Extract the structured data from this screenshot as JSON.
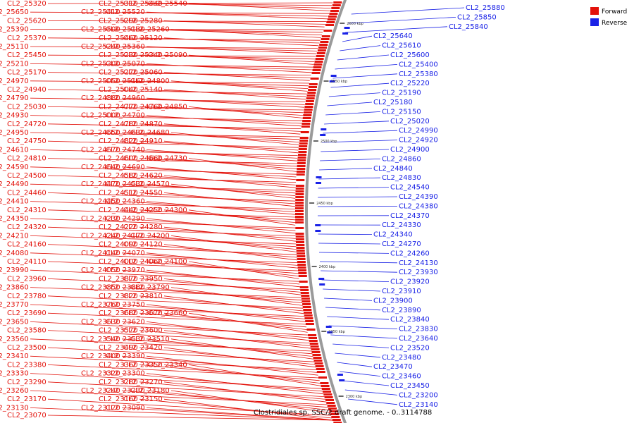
{
  "caption": "Clostridiales sp. SSC/2 draft genome. - 0..3114788",
  "legend": {
    "forward_label": "Forward",
    "reverse_label": "Reverse",
    "forward_color": "#e3120b",
    "reverse_color": "#1a22e6"
  },
  "ticks": [
    "2600 kbp",
    "2550 kbp",
    "2500 kbp",
    "2450 kbp",
    "2400 kbp",
    "2350 kbp",
    "2300 kbp"
  ],
  "forward_labels": [
    "CL2_25320",
    "CL2_25310",
    "CL2_25440",
    "CL2_25540",
    "CL2_25650",
    "CL2_25410",
    "CL2_25520",
    "CL2_25620",
    "CL2_25290",
    "CL2_25280",
    "CL2_25390",
    "CL2_25500",
    "CL2_25130",
    "CL2_25260",
    "CL2_25370",
    "CL2_25460",
    "CL2_25120",
    "CL2_25110",
    "CL2_25240",
    "CL2_25360",
    "CL2_25450",
    "CL2_25230",
    "CL2_25340",
    "CL2_25090",
    "CL2_25210",
    "CL2_25300",
    "CL2_25070",
    "CL2_25170",
    "CL2_25270",
    "CL2_25060",
    "CL2_24970",
    "CL2_25050",
    "CL2_25160",
    "CL2_24800",
    "CL2_24940",
    "CL2_25040",
    "CL2_25140",
    "CL2_24790",
    "CL2_24880",
    "CL2_24960",
    "CL2_25030",
    "CL2_24770",
    "CL2_24760",
    "CL2_24850",
    "CL2_24930",
    "CL2_25000",
    "CL2_24700",
    "CL2_24720",
    "CL2_24780",
    "CL2_24870",
    "CL2_24950",
    "CL2_24650",
    "CL2_24630",
    "CL2_24680",
    "CL2_24750",
    "CL2_24820",
    "CL2_24910",
    "CL2_24610",
    "CL2_24670",
    "CL2_24740",
    "CL2_24810",
    "CL2_24600",
    "CL2_24660",
    "CL2_24730",
    "CL2_24590",
    "CL2_24640",
    "CL2_24690",
    "CL2_24500",
    "CL2_24580",
    "CL2_24620",
    "CL2_24490",
    "CL2_24470",
    "CL2_24530",
    "CL2_24570",
    "CL2_24460",
    "CL2_24510",
    "CL2_24550",
    "CL2_24410",
    "CL2_24450",
    "CL2_24360",
    "CL2_24310",
    "CL2_24440",
    "CL2_24250",
    "CL2_24300",
    "CL2_24350",
    "CL2_24230",
    "CL2_24290",
    "CL2_24320",
    "CL2_24220",
    "CL2_24280",
    "CL2_24210",
    "CL2_24240",
    "CL2_24170",
    "CL2_24200",
    "CL2_24160",
    "CL2_24090",
    "CL2_24120",
    "CL2_24080",
    "CL2_24140",
    "CL2_24070",
    "CL2_24110",
    "CL2_24000",
    "CL2_24060",
    "CL2_24100",
    "CL2_23990",
    "CL2_24050",
    "CL2_23970",
    "CL2_23960",
    "CL2_23870",
    "CL2_23950",
    "CL2_23860",
    "CL2_23850",
    "CL2_23880",
    "CL2_23790",
    "CL2_23780",
    "CL2_23820",
    "CL2_23810",
    "CL2_23770",
    "CL2_23760",
    "CL2_23750",
    "CL2_23690",
    "CL2_23680",
    "CL2_23670",
    "CL2_23660",
    "CL2_23650",
    "CL2_23630",
    "CL2_23620",
    "CL2_23580",
    "CL2_23570",
    "CL2_23600",
    "CL2_23560",
    "CL2_23540",
    "CL2_23530",
    "CL2_23510",
    "CL2_23500",
    "CL2_23490",
    "CL2_23420",
    "CL2_23410",
    "CL2_23400",
    "CL2_23390",
    "CL2_23380",
    "CL2_23360",
    "CL2_23350",
    "CL2_23340",
    "CL2_23330",
    "CL2_23320",
    "CL2_23300",
    "CL2_23290",
    "CL2_23280",
    "CL2_23270",
    "CL2_23260",
    "CL2_23240",
    "CL2_23230",
    "CL2_23180",
    "CL2_23170",
    "CL2_23160",
    "CL2_23150",
    "CL2_23130",
    "CL2_23120",
    "CL2_23090",
    "CL2_23070"
  ],
  "reverse_labels": [
    "CL2_25880",
    "CL2_25850",
    "CL2_25840",
    "CL2_25640",
    "CL2_25610",
    "CL2_25600",
    "CL2_25400",
    "CL2_25380",
    "CL2_25220",
    "CL2_25190",
    "CL2_25180",
    "CL2_25150",
    "CL2_25020",
    "CL2_24990",
    "CL2_24920",
    "CL2_24900",
    "CL2_24860",
    "CL2_24840",
    "CL2_24830",
    "CL2_24540",
    "CL2_24390",
    "CL2_24380",
    "CL2_24370",
    "CL2_24330",
    "CL2_24340",
    "CL2_24270",
    "CL2_24260",
    "CL2_24130",
    "CL2_23930",
    "CL2_23920",
    "CL2_23910",
    "CL2_23900",
    "CL2_23890",
    "CL2_23840",
    "CL2_23830",
    "CL2_23640",
    "CL2_23520",
    "CL2_23480",
    "CL2_23470",
    "CL2_23460",
    "CL2_23450",
    "CL2_23200",
    "CL2_23140"
  ]
}
